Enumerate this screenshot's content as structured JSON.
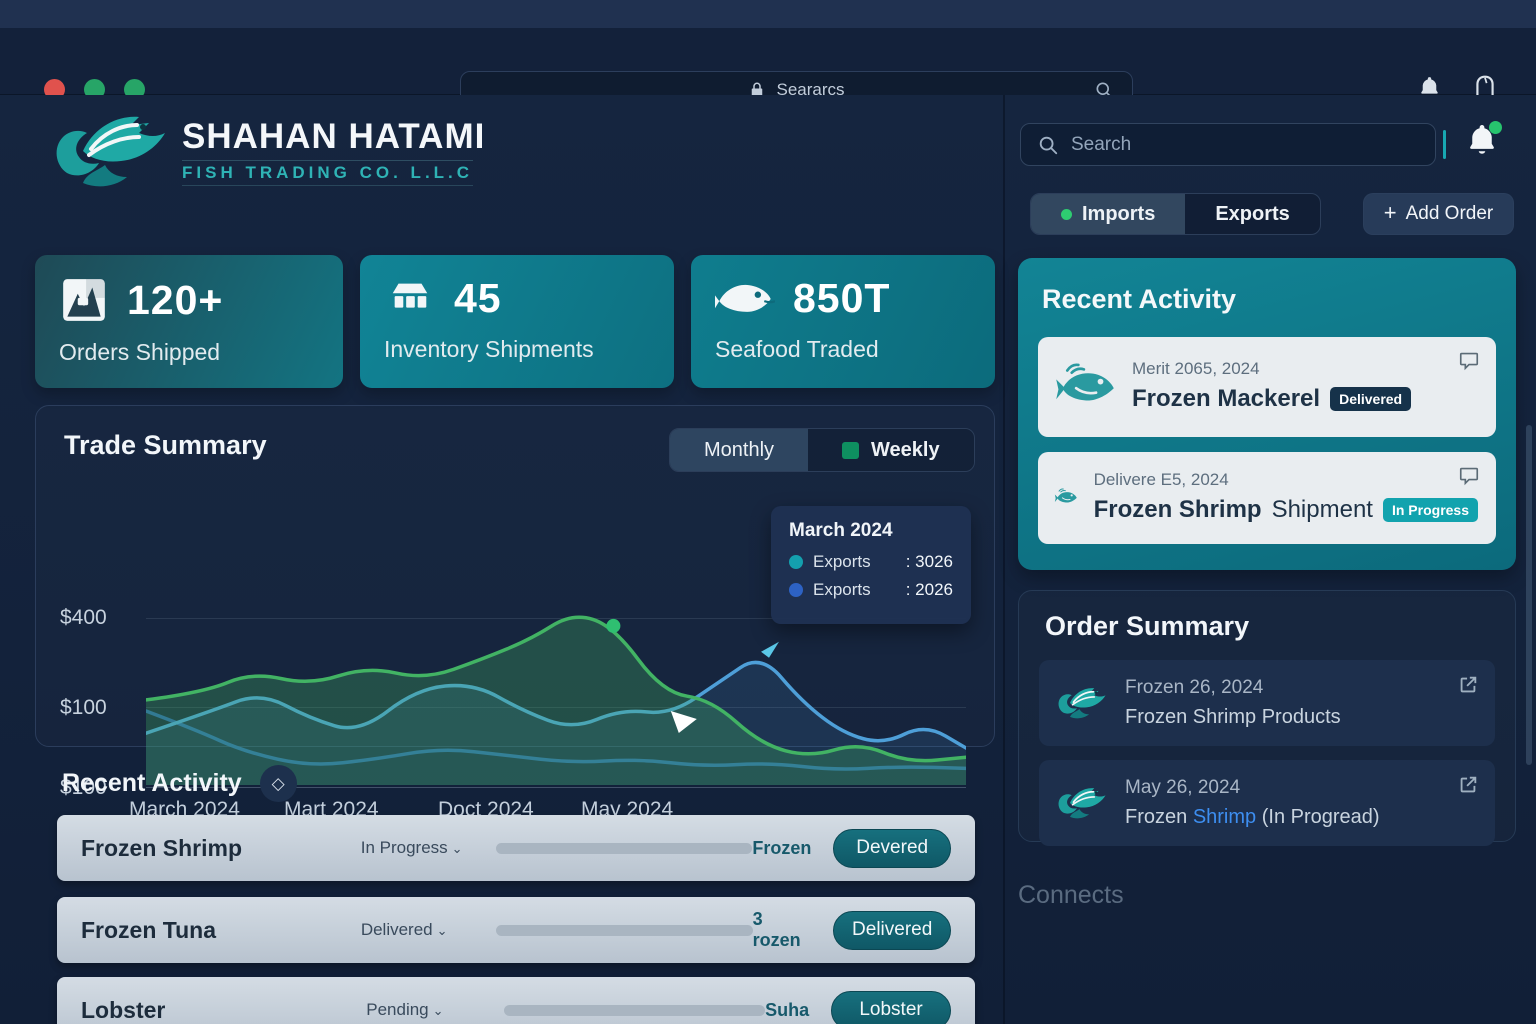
{
  "browser": {
    "address_text": "Seararcs",
    "traffic_lights": [
      "#e0524d",
      "#27a567",
      "#27a567"
    ]
  },
  "header": {
    "brand_name": "SHAHAN HATAMI",
    "brand_subtitle": "FISH TRADING CO. L.L.C",
    "search_placeholder": "Search",
    "tabs": [
      {
        "label": "Imports",
        "active": true,
        "dot_color": "#2ecc71"
      },
      {
        "label": "Exports",
        "active": false
      }
    ],
    "add_order_label": "Add Order"
  },
  "icons": {
    "plus": "+",
    "caret_down": "⌄",
    "diamond": "◇",
    "colon": ":"
  },
  "stats": [
    {
      "value": "120+",
      "label": "Orders Shipped",
      "icon": "chart-square-icon"
    },
    {
      "value": "45",
      "label": "Inventory Shipments",
      "icon": "warehouse-icon"
    },
    {
      "value": "850T",
      "label": "Seafood Traded",
      "icon": "fish-icon"
    }
  ],
  "trade_summary": {
    "title": "Trade Summary",
    "toggle": {
      "monthly": "Monthly",
      "weekly": "Weekly",
      "weekly_square_color": "#0e8f60"
    },
    "y_ticks": [
      "$400",
      "$100",
      "$100"
    ],
    "x_ticks": [
      "March 2024",
      "Mart 2024",
      "Doct 2024",
      "May 2024"
    ],
    "tooltip": {
      "title": "March 2024",
      "rows": [
        {
          "label": "Exports",
          "value": "3026",
          "color": "#14a0ae"
        },
        {
          "label": "Exports",
          "value": "2026",
          "color": "#2d62c4"
        }
      ]
    }
  },
  "chart_data": {
    "type": "area",
    "title": "Trade Summary",
    "x_tick_labels": [
      "March 2024",
      "Mart 2024",
      "Doct 2024",
      "May 2024"
    ],
    "y_tick_labels": [
      "$400",
      "$100",
      "$100"
    ],
    "legend_position": "tooltip-overlay",
    "note": "values estimated as percent of plot height (0=bottom,100=top)",
    "series": [
      {
        "name": "Exports (green)",
        "color": "#42b364",
        "fill_opacity": 0.3,
        "points": [
          [
            0,
            46
          ],
          [
            7,
            50
          ],
          [
            13,
            61
          ],
          [
            20,
            54
          ],
          [
            27,
            64
          ],
          [
            34,
            57
          ],
          [
            41,
            68
          ],
          [
            47,
            79
          ],
          [
            52,
            93
          ],
          [
            57,
            86
          ],
          [
            63,
            50
          ],
          [
            69,
            46
          ],
          [
            75,
            22
          ],
          [
            81,
            15
          ],
          [
            87,
            23
          ],
          [
            93,
            12
          ],
          [
            100,
            15
          ]
        ]
      },
      {
        "name": "Exports (light blue)",
        "color": "#4e9fd8",
        "fill_opacity": 0.14,
        "points": [
          [
            0,
            28
          ],
          [
            8,
            40
          ],
          [
            14,
            50
          ],
          [
            20,
            36
          ],
          [
            26,
            28
          ],
          [
            33,
            52
          ],
          [
            40,
            55
          ],
          [
            46,
            40
          ],
          [
            52,
            30
          ],
          [
            58,
            41
          ],
          [
            64,
            38
          ],
          [
            70,
            56
          ],
          [
            75,
            71
          ],
          [
            80,
            45
          ],
          [
            85,
            28
          ],
          [
            90,
            22
          ],
          [
            95,
            33
          ],
          [
            100,
            20
          ]
        ]
      },
      {
        "name": "Exports (dark blue)",
        "color": "#2b62a8",
        "fill_opacity": 0,
        "points": [
          [
            0,
            40
          ],
          [
            6,
            30
          ],
          [
            12,
            18
          ],
          [
            20,
            10
          ],
          [
            28,
            14
          ],
          [
            36,
            20
          ],
          [
            44,
            16
          ],
          [
            52,
            12
          ],
          [
            60,
            14
          ],
          [
            68,
            10
          ],
          [
            76,
            12
          ],
          [
            84,
            8
          ],
          [
            92,
            10
          ],
          [
            100,
            9
          ]
        ]
      }
    ],
    "markers": [
      {
        "type": "dot",
        "x": 57,
        "y": 86,
        "color": "#2fbf71"
      },
      {
        "type": "cursor",
        "x": 64,
        "y": 40,
        "color": "#ffffff"
      },
      {
        "type": "arrow",
        "x": 75,
        "y": 72,
        "color": "#5bc8e8"
      }
    ]
  },
  "recent_activity_main": {
    "title": "Recent Activity",
    "rows": [
      {
        "name": "Frozen Shrimp",
        "status": "In Progress",
        "progress": 100,
        "bar_color": "#117a84",
        "note": "Frozen",
        "button": "Devered"
      },
      {
        "name": "Frozen Tuna",
        "status": "Delivered",
        "progress": 78,
        "bar_color": "#2f6cb8",
        "note": "3 rozen",
        "button": "Delivered"
      },
      {
        "name": "Lobster",
        "status": "Pending",
        "progress": 60,
        "bar_color": "#2f6cb8",
        "note": "Suha",
        "button": "Lobster"
      }
    ]
  },
  "right_panel": {
    "recent_activity": {
      "title": "Recent Activity",
      "items": [
        {
          "date": "Merit 2065, 2024",
          "title_bold": "Frozen Mackerel",
          "title_rest": "",
          "badge": "Delivered"
        },
        {
          "date": "Delivere E5, 2024",
          "title_bold": "Frozen Shrimp",
          "title_rest": "Shipment",
          "badge": "In Progress"
        }
      ]
    },
    "order_summary": {
      "title": "Order Summary",
      "items": [
        {
          "date": "Frozen 26, 2024",
          "title_prefix": "Frozen Shrimp Products",
          "title_highlight": "",
          "title_suffix": ""
        },
        {
          "date": "May 26, 2024",
          "title_prefix": "Frozen ",
          "title_highlight": "Shrimp",
          "title_suffix": " (In Progread)"
        }
      ]
    },
    "connects_label": "Connects"
  }
}
